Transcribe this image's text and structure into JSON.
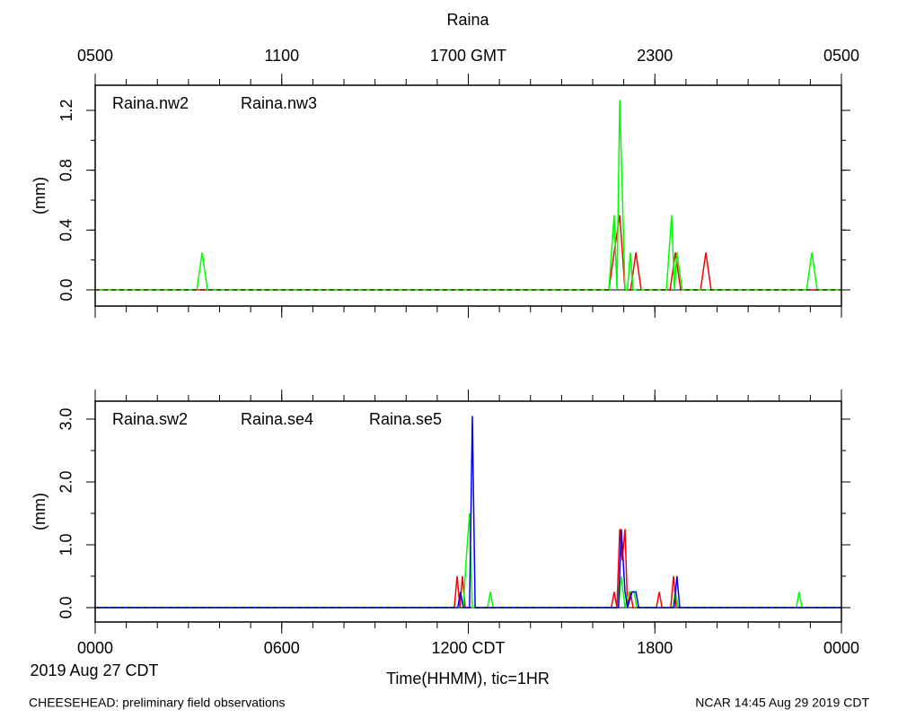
{
  "chart_data": [
    {
      "type": "line",
      "title": "Raina",
      "ylabel": "(mm)",
      "xlim": [
        0,
        24
      ],
      "minor_xtick_step": 1,
      "x2ticks": [
        {
          "value": 0,
          "label": "0500"
        },
        {
          "value": 6,
          "label": "1100"
        },
        {
          "value": 12,
          "label": "1700 GMT"
        },
        {
          "value": 18,
          "label": "2300"
        },
        {
          "value": 24,
          "label": "0500"
        }
      ],
      "ylim": [
        -0.108,
        1.368
      ],
      "yticks": [
        {
          "value": 0,
          "label": "0.0"
        },
        0.4,
        0.8,
        1.2
      ],
      "minor_ytick_step": 0.2,
      "series": [
        {
          "name": "Raina.nw2",
          "color": "#ff0000",
          "x": [
            0,
            16.52,
            16.69,
            16.87,
            17.04,
            17.22,
            17.39,
            17.56,
            18.49,
            18.66,
            18.83,
            19.47,
            19.64,
            19.81,
            24
          ],
          "values": [
            0,
            0,
            0.25,
            0.5,
            0,
            0,
            0.25,
            0,
            0,
            0.25,
            0,
            0,
            0.25,
            0,
            0
          ]
        },
        {
          "name": "Raina.nw3",
          "color": "#00ff00",
          "x": [
            0,
            3.27,
            3.44,
            3.61,
            16.52,
            16.69,
            16.78,
            16.87,
            17.04,
            17.12,
            17.21,
            17.3,
            18.37,
            18.54,
            18.63,
            18.71,
            18.88,
            22.88,
            23.05,
            23.22,
            24
          ],
          "values": [
            0,
            0,
            0.25,
            0,
            0,
            0.5,
            0,
            1.27,
            0,
            0,
            0.25,
            0,
            0,
            0.5,
            0,
            0.25,
            0,
            0,
            0.25,
            0,
            0
          ]
        }
      ]
    },
    {
      "type": "line",
      "ylabel": "(mm)",
      "xlabel": "Time(HHMM), tic=1HR",
      "date_label": "2019 Aug 27 CDT",
      "xlim": [
        0,
        24
      ],
      "minor_xtick_step": 1,
      "xticks": [
        {
          "value": 0,
          "label": "0000"
        },
        {
          "value": 6,
          "label": "0600"
        },
        {
          "value": 12,
          "label": "1200 CDT"
        },
        {
          "value": 18,
          "label": "1800"
        },
        {
          "value": 24,
          "label": "0000"
        }
      ],
      "ylim": [
        -0.229,
        3.286
      ],
      "yticks": [
        {
          "value": 0,
          "label": "0.0"
        },
        {
          "value": 1,
          "label": "1.0"
        },
        {
          "value": 2,
          "label": "2.0"
        },
        {
          "value": 3,
          "label": "3.0"
        }
      ],
      "minor_ytick_step": 0.5,
      "series": [
        {
          "name": "Raina.sw2",
          "color": "#ff0000",
          "x": [
            0,
            11.55,
            11.64,
            11.73,
            11.81,
            11.9,
            16.6,
            16.69,
            16.78,
            16.87,
            16.95,
            17.04,
            17.12,
            17.21,
            17.3,
            18.05,
            18.14,
            18.23,
            18.51,
            18.6,
            18.69,
            24
          ],
          "values": [
            0,
            0,
            0.5,
            0,
            0.5,
            0,
            0,
            0.25,
            0,
            1.25,
            0.75,
            1.25,
            0,
            0.25,
            0,
            0,
            0.25,
            0,
            0,
            0.5,
            0,
            0
          ]
        },
        {
          "name": "Raina.se4",
          "color": "#00ff00",
          "x": [
            0,
            11.84,
            11.93,
            12.04,
            12.13,
            12.62,
            12.71,
            12.8,
            16.83,
            16.92,
            17.04,
            17.16,
            17.33,
            17.42,
            18.57,
            18.66,
            18.75,
            22.55,
            22.64,
            22.73,
            24
          ],
          "values": [
            0,
            0,
            0.75,
            1.5,
            0,
            0,
            0.25,
            0,
            0,
            0.5,
            0,
            0.25,
            0.25,
            0,
            0,
            0.25,
            0,
            0,
            0.25,
            0,
            0
          ]
        },
        {
          "name": "Raina.se5",
          "color": "#0000ff",
          "x": [
            0,
            11.66,
            11.75,
            11.84,
            12.04,
            12.13,
            12.22,
            16.83,
            16.92,
            17.04,
            17.12,
            17.27,
            17.39,
            17.48,
            18.62,
            18.71,
            18.8,
            24
          ],
          "values": [
            0,
            0,
            0.25,
            0,
            0,
            3.05,
            0,
            0,
            1.25,
            0.25,
            0,
            0.25,
            0.25,
            0,
            0,
            0.5,
            0,
            0
          ]
        }
      ]
    }
  ],
  "footer": {
    "left": "CHEESEHEAD: preliminary field observations",
    "right": "NCAR 14:45 Aug 29 2019 CDT"
  }
}
